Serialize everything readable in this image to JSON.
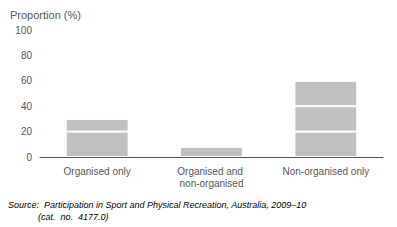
{
  "chart_data": {
    "type": "bar",
    "stacked": true,
    "ylabel": "Proportion (%)",
    "categories": [
      "Organised only",
      "Organised and non-organised",
      "Non-organised only"
    ],
    "series": [
      {
        "values": [
          20,
          8,
          20
        ]
      },
      {
        "values": [
          10,
          null,
          20
        ]
      },
      {
        "values": [
          null,
          null,
          20
        ]
      }
    ],
    "color": "#c0c0c0",
    "ylim": [
      0,
      100
    ],
    "yticks": [
      0,
      20,
      40,
      60,
      80,
      100
    ],
    "grid": false,
    "annotations": [
      "Source:  Participation in Sport and Physical Recreation, Australia, 2009–10\n            (cat.  no.  4177.0)"
    ]
  }
}
